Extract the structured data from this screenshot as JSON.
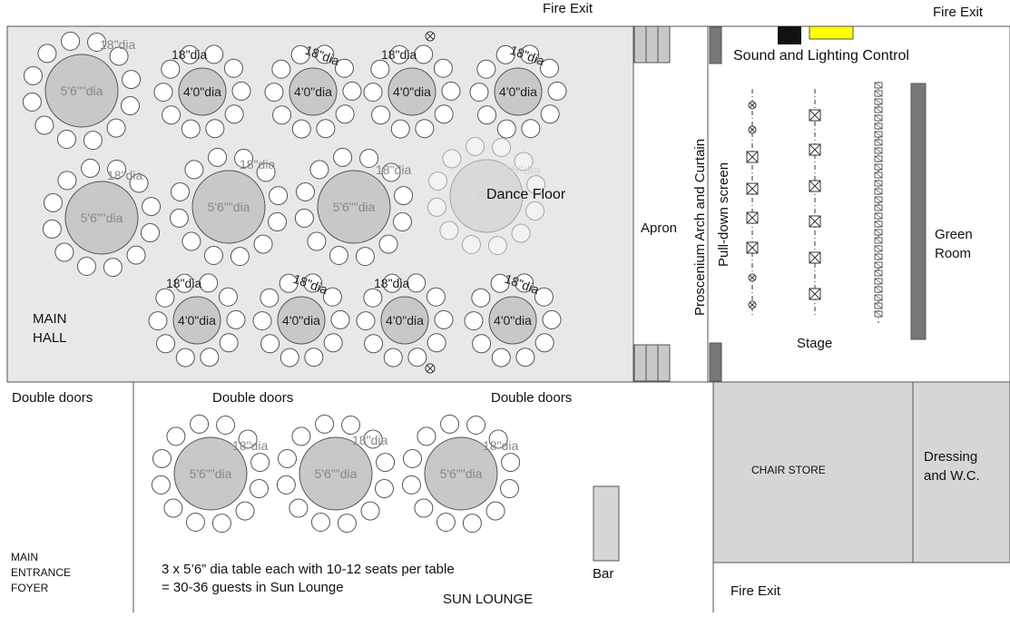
{
  "labels": {
    "fire_exit_top_center": "Fire Exit",
    "fire_exit_top_right": "Fire Exit",
    "fire_exit_bottom": "Fire Exit",
    "sound_lighting": "Sound and Lighting Control",
    "apron": "Apron",
    "proscenium": "Proscenium Arch and Curtain",
    "pulldown": "Pull-down screen",
    "stage": "Stage",
    "green_room": [
      "Green",
      "Room"
    ],
    "main_hall": [
      "MAIN",
      "HALL"
    ],
    "dance_floor": "Dance Floor",
    "double_doors_1": "Double doors",
    "double_doors_2": "Double doors",
    "double_doors_3": "Double doors",
    "chair_store": "CHAIR STORE",
    "dressing": [
      "Dressing",
      "and W.C."
    ],
    "main_entrance": [
      "MAIN",
      "ENTRANCE",
      "FOYER"
    ],
    "bar": "Bar",
    "note": [
      "3 x 5’6” dia table each with 10-12 seats per table",
      "= 30-36 guests in Sun Lounge"
    ],
    "sun_lounge": "SUN LOUNGE"
  },
  "dims": {
    "seat": "18\"dia",
    "small_table": "4'0\"dia",
    "large_table": "5'6\"\"dia",
    "large_table_cut": "5'6"
  },
  "colors": {
    "hall_fill": "#e8e8e8",
    "table_fill": "#c8c8c8",
    "room_fill": "#d6d6d6",
    "dark": "#777777",
    "yellow": "#ffff00"
  }
}
